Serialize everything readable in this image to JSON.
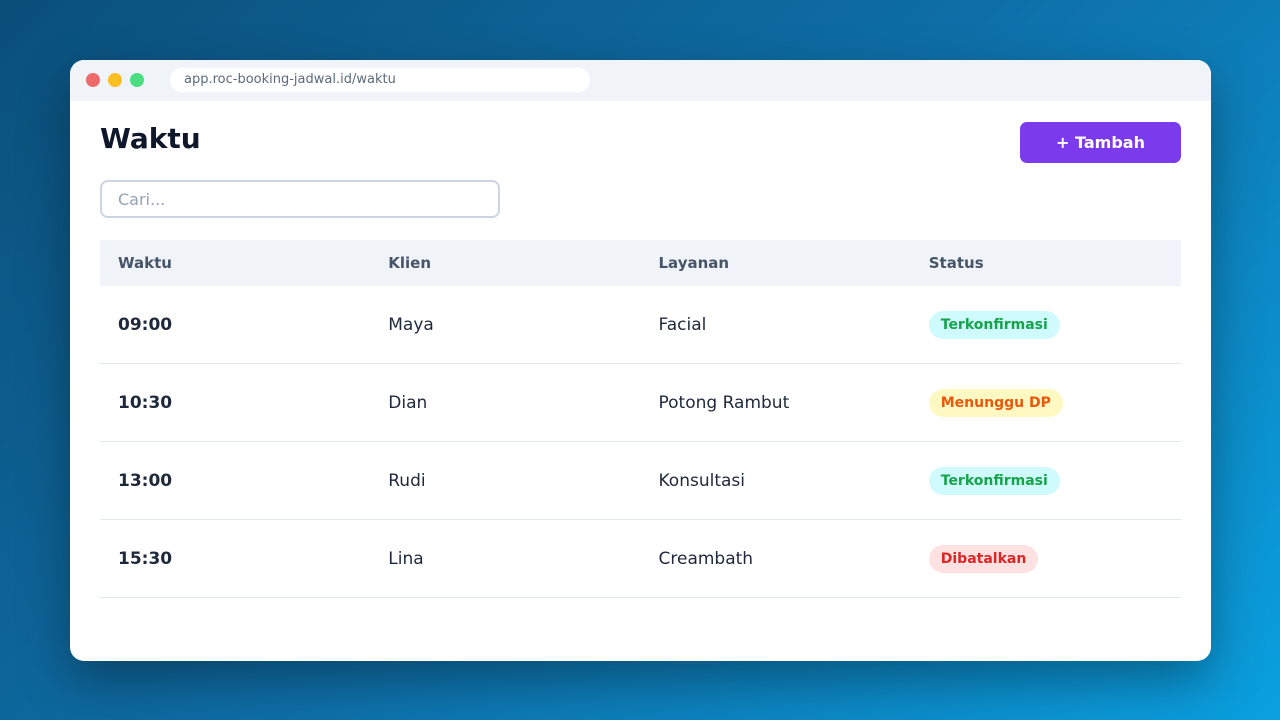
{
  "browser": {
    "url": "app.roc-booking-jadwal.id/waktu"
  },
  "header": {
    "title": "Waktu",
    "button": "+ Tambah"
  },
  "search": {
    "placeholder": "Cari..."
  },
  "table": {
    "columns": [
      "Waktu",
      "Klien",
      "Layanan",
      "Status"
    ],
    "rows": [
      [
        "09:00",
        "Maya",
        "Facial",
        "Terkonfirmasi"
      ],
      [
        "10:30",
        "Dian",
        "Potong Rambut",
        "Menunggu DP"
      ],
      [
        "13:00",
        "Rudi",
        "Konsultasi",
        "Terkonfirmasi"
      ],
      [
        "15:30",
        "Lina",
        "Creambath",
        "Dibatalkan"
      ]
    ]
  }
}
